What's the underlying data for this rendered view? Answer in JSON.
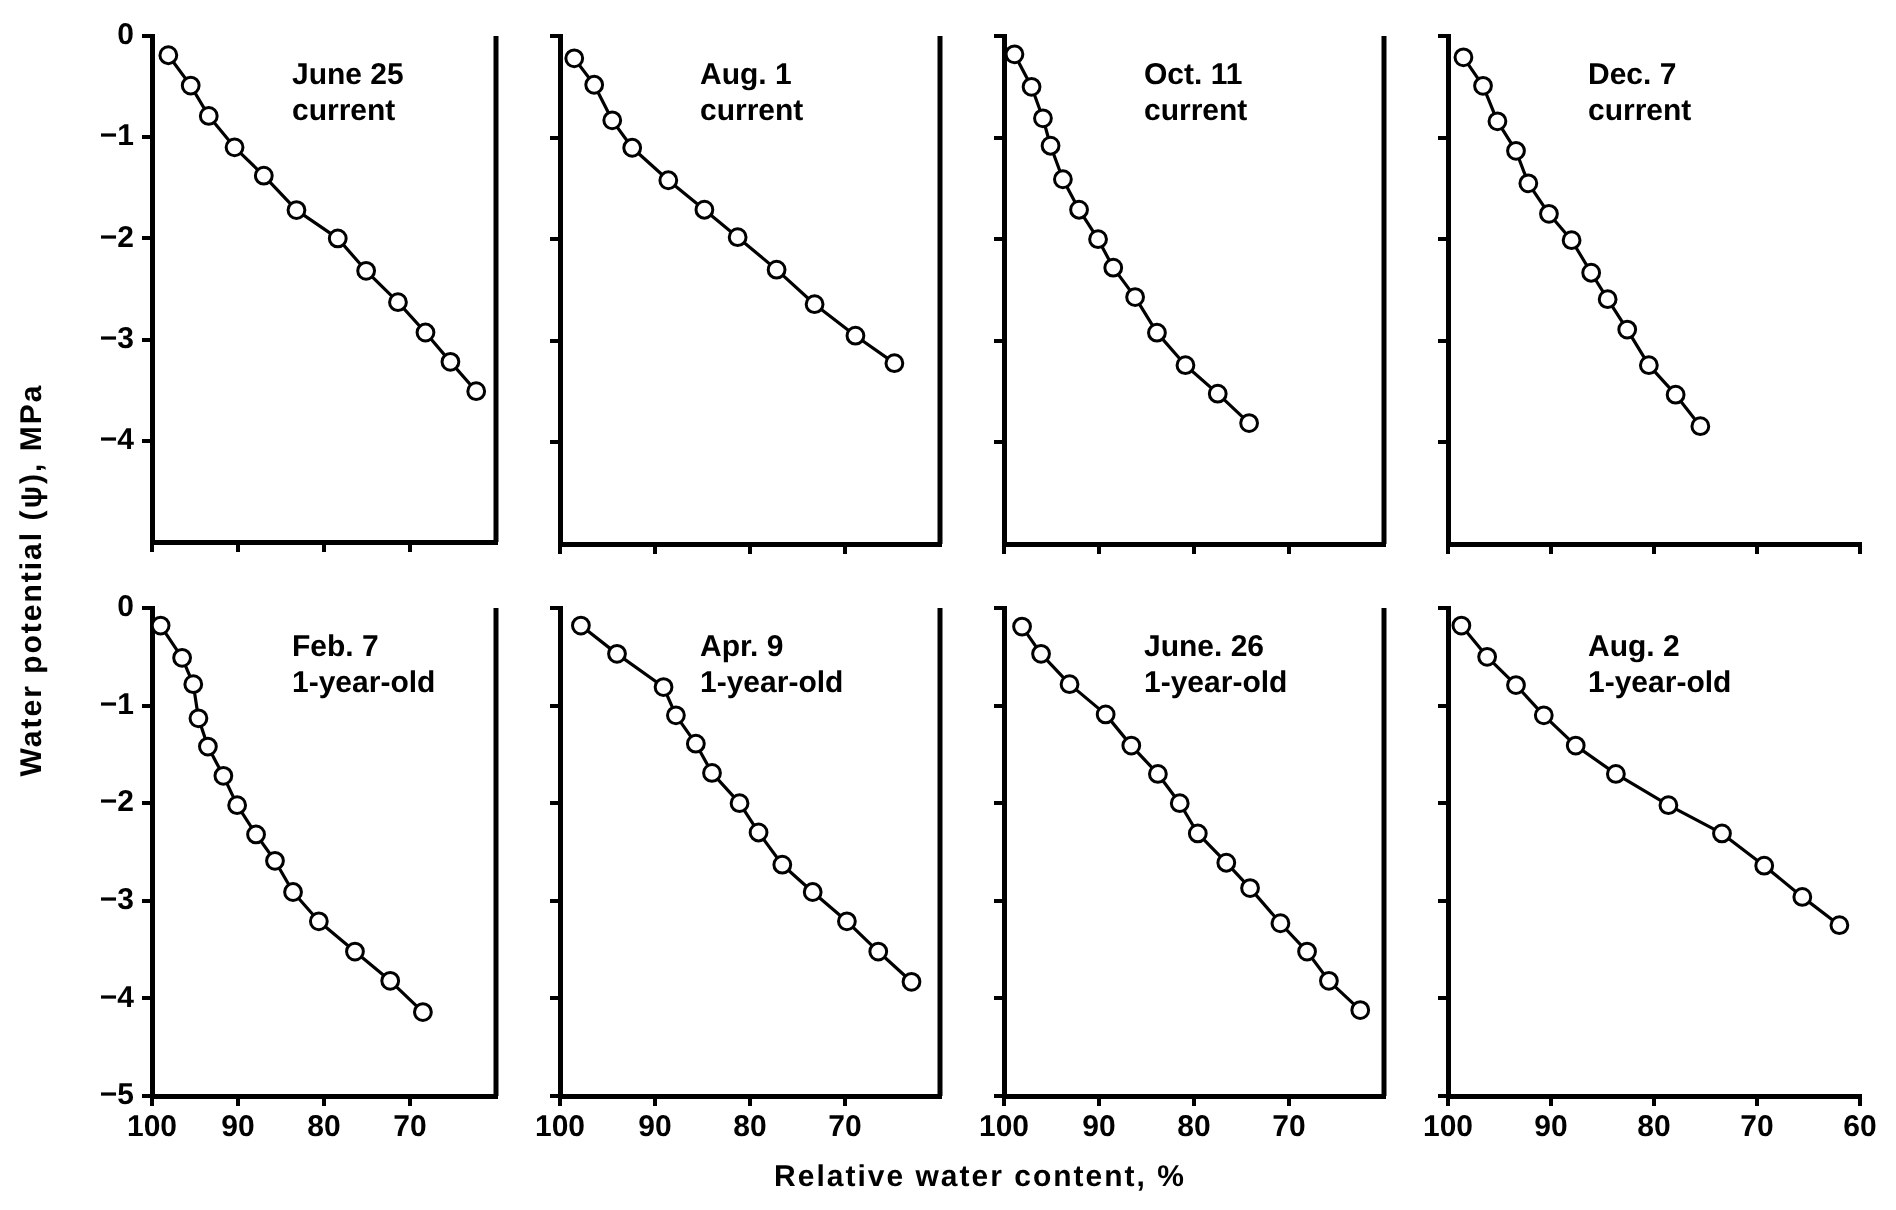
{
  "chart_data": [
    {
      "type": "line",
      "annotations": [
        "June 25",
        "current"
      ],
      "ylabel": "Water potential (ψ), MPa",
      "xlim": [
        100,
        60
      ],
      "xticks": [
        100,
        90,
        80,
        70
      ],
      "ylim": [
        -5,
        0
      ],
      "yticks": [
        0,
        -1,
        -2,
        -3,
        -4
      ],
      "tick_labels": "y",
      "marker": "circle",
      "series": [
        {
          "color": "#000000",
          "x": [
            98.1,
            95.5,
            93.4,
            90.4,
            87,
            83.2,
            78.4,
            75.1,
            71.4,
            68.2,
            65.3,
            62.3
          ],
          "values": [
            -0.19,
            -0.49,
            -0.79,
            -1.1,
            -1.38,
            -1.72,
            -2,
            -2.32,
            -2.63,
            -2.93,
            -3.22,
            -3.51
          ]
        }
      ]
    },
    {
      "type": "line",
      "annotations": [
        "Aug. 1",
        "current"
      ],
      "xlim": [
        100,
        60
      ],
      "xticks": [
        100,
        90,
        80,
        70
      ],
      "ylim": [
        -5,
        0
      ],
      "yticks": [
        0,
        -1,
        -2,
        -3,
        -4
      ],
      "tick_labels": false,
      "marker": "circle",
      "series": [
        {
          "color": "#000000",
          "x": [
            98.5,
            96.4,
            94.5,
            92.4,
            88.6,
            84.8,
            81.3,
            77.2,
            73.2,
            68.9,
            64.8
          ],
          "values": [
            -0.22,
            -0.48,
            -0.83,
            -1.1,
            -1.42,
            -1.71,
            -1.98,
            -2.3,
            -2.64,
            -2.95,
            -3.22
          ]
        }
      ]
    },
    {
      "type": "line",
      "annotations": [
        "Oct. 11",
        "current"
      ],
      "xlim": [
        100,
        60
      ],
      "xticks": [
        100,
        90,
        80,
        70
      ],
      "ylim": [
        -5,
        0
      ],
      "yticks": [
        0,
        -1,
        -2,
        -3,
        -4
      ],
      "tick_labels": false,
      "marker": "circle",
      "series": [
        {
          "color": "#000000",
          "x": [
            98.9,
            97.1,
            95.9,
            95.1,
            93.8,
            92.1,
            90.1,
            88.5,
            86.2,
            83.9,
            80.9,
            77.5,
            74.2
          ],
          "values": [
            -0.18,
            -0.5,
            -0.81,
            -1.08,
            -1.41,
            -1.71,
            -2,
            -2.28,
            -2.57,
            -2.92,
            -3.24,
            -3.52,
            -3.81
          ]
        }
      ]
    },
    {
      "type": "line",
      "annotations": [
        "Dec. 7",
        "current"
      ],
      "xlim": [
        100,
        60
      ],
      "xticks": [
        100,
        90,
        80,
        70,
        60
      ],
      "ylim": [
        -5,
        0
      ],
      "yticks": [
        0,
        -1,
        -2,
        -3,
        -4
      ],
      "tick_labels": false,
      "marker": "circle",
      "series": [
        {
          "color": "#000000",
          "x": [
            98.5,
            96.6,
            95.2,
            93.4,
            92.2,
            90.2,
            88,
            86.1,
            84.5,
            82.6,
            80.5,
            77.9,
            75.5
          ],
          "values": [
            -0.21,
            -0.49,
            -0.84,
            -1.13,
            -1.45,
            -1.75,
            -2.01,
            -2.33,
            -2.59,
            -2.89,
            -3.24,
            -3.53,
            -3.84
          ]
        }
      ]
    },
    {
      "type": "line",
      "annotations": [
        "Feb. 7",
        "1-year-old"
      ],
      "xlim": [
        100,
        60
      ],
      "xticks": [
        100,
        90,
        80,
        70
      ],
      "ylim": [
        -5,
        0
      ],
      "yticks": [
        0,
        -1,
        -2,
        -3,
        -4,
        -5
      ],
      "marker": "circle",
      "series": [
        {
          "color": "#000000",
          "x": [
            99,
            96.5,
            95.2,
            94.6,
            93.5,
            91.7,
            90.1,
            87.9,
            85.7,
            83.6,
            80.6,
            76.4,
            72.3,
            68.5
          ],
          "values": [
            -0.18,
            -0.51,
            -0.78,
            -1.13,
            -1.42,
            -1.72,
            -2.02,
            -2.32,
            -2.59,
            -2.91,
            -3.21,
            -3.52,
            -3.82,
            -4.14
          ]
        }
      ]
    },
    {
      "type": "line",
      "annotations": [
        "Apr. 9",
        "1-year-old"
      ],
      "xlabel": "Relative water content, %",
      "xlim": [
        100,
        60
      ],
      "xticks": [
        100,
        90,
        80,
        70
      ],
      "ylim": [
        -5,
        0
      ],
      "yticks": [
        0,
        -1,
        -2,
        -3,
        -4,
        -5
      ],
      "tick_labels": "x",
      "marker": "circle",
      "series": [
        {
          "color": "#000000",
          "x": [
            97.8,
            94,
            89.1,
            87.8,
            85.7,
            84,
            81.1,
            79.1,
            76.6,
            73.4,
            69.8,
            66.5,
            63
          ],
          "values": [
            -0.18,
            -0.47,
            -0.81,
            -1.1,
            -1.39,
            -1.69,
            -2,
            -2.3,
            -2.63,
            -2.91,
            -3.21,
            -3.52,
            -3.83
          ]
        }
      ]
    },
    {
      "type": "line",
      "annotations": [
        "June. 26",
        "1-year-old"
      ],
      "xlim": [
        100,
        60
      ],
      "xticks": [
        100,
        90,
        80,
        70
      ],
      "ylim": [
        -5,
        0
      ],
      "yticks": [
        0,
        -1,
        -2,
        -3,
        -4,
        -5
      ],
      "tick_labels": "x",
      "marker": "circle",
      "series": [
        {
          "color": "#000000",
          "x": [
            98.1,
            96.1,
            93.1,
            89.3,
            86.6,
            83.8,
            81.5,
            79.6,
            76.6,
            74.1,
            70.9,
            68.1,
            65.8,
            62.5
          ],
          "values": [
            -0.19,
            -0.47,
            -0.78,
            -1.09,
            -1.41,
            -1.7,
            -2,
            -2.31,
            -2.61,
            -2.87,
            -3.23,
            -3.52,
            -3.82,
            -4.12
          ]
        }
      ]
    },
    {
      "type": "line",
      "annotations": [
        "Aug. 2",
        "1-year-old"
      ],
      "xlim": [
        100,
        60
      ],
      "xticks": [
        100,
        90,
        80,
        70,
        60
      ],
      "ylim": [
        -5,
        0
      ],
      "yticks": [
        0,
        -1,
        -2,
        -3,
        -4,
        -5
      ],
      "tick_labels": "x",
      "marker": "circle",
      "series": [
        {
          "color": "#000000",
          "x": [
            98.7,
            96.2,
            93.4,
            90.7,
            87.6,
            83.7,
            78.6,
            73.4,
            69.3,
            65.6,
            62
          ],
          "values": [
            -0.18,
            -0.5,
            -0.79,
            -1.1,
            -1.41,
            -1.7,
            -2.02,
            -2.31,
            -2.64,
            -2.96,
            -3.25
          ]
        }
      ]
    }
  ]
}
